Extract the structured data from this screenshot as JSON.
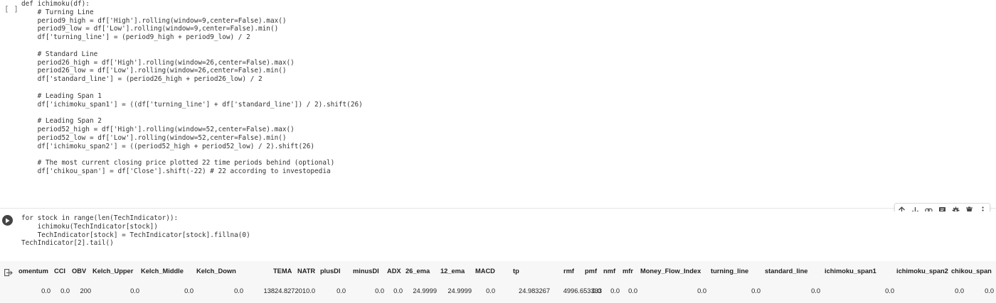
{
  "cell1": {
    "bracket": "[ ]",
    "lines": [
      "def ichimoku(df):",
      "    # Turning Line",
      "    period9_high = df['High'].rolling(window=9,center=False).max()",
      "    period9_low = df['Low'].rolling(window=9,center=False).min()",
      "    df['turning_line'] = (period9_high + period9_low) / 2",
      "",
      "    # Standard Line",
      "    period26_high = df['High'].rolling(window=26,center=False).max()",
      "    period26_low = df['Low'].rolling(window=26,center=False).min()",
      "    df['standard_line'] = (period26_high + period26_low) / 2",
      "",
      "    # Leading Span 1",
      "    df['ichimoku_span1'] = ((df['turning_line'] + df['standard_line']) / 2).shift(26)",
      "",
      "    # Leading Span 2",
      "    period52_high = df['High'].rolling(window=52,center=False).max()",
      "    period52_low = df['Low'].rolling(window=52,center=False).min()",
      "    df['ichimoku_span2'] = ((period52_high + period52_low) / 2).shift(26)",
      "",
      "    # The most current closing price plotted 22 time periods behind (optional)",
      "    df['chikou_span'] = df['Close'].shift(-22) # 22 according to investopedia"
    ]
  },
  "cell2": {
    "lines": [
      "for stock in range(len(TechIndicator)):",
      "    ichimoku(TechIndicator[stock])",
      "    TechIndicator[stock] = TechIndicator[stock].fillna(0)",
      "TechIndicator[2].tail()"
    ]
  },
  "toolbar": [
    "arrow-up-icon",
    "arrow-down-icon",
    "link-icon",
    "comment-icon",
    "gear-icon",
    "trash-icon",
    "more-icon"
  ],
  "output": {
    "columns": [
      {
        "h": "omentum",
        "v": "0.0"
      },
      {
        "h": "CCI",
        "v": "0.0"
      },
      {
        "h": "OBV",
        "v": "200"
      },
      {
        "h": "Kelch_Upper",
        "v": "0.0"
      },
      {
        "h": "Kelch_Middle",
        "v": "0.0"
      },
      {
        "h": "Kelch_Down",
        "v": "0.0"
      },
      {
        "h": "TEMA",
        "v": "13824.827201"
      },
      {
        "h": "NATR",
        "v": "0.0"
      },
      {
        "h": "plusDI",
        "v": "0.0"
      },
      {
        "h": "minusDI",
        "v": "0.0"
      },
      {
        "h": "ADX",
        "v": "0.0"
      },
      {
        "h": "26_ema",
        "v": "24.9999"
      },
      {
        "h": "12_ema",
        "v": "24.9999"
      },
      {
        "h": "MACD",
        "v": "0.0"
      },
      {
        "h": "tp",
        "v": "24.983267"
      },
      {
        "h": "rmf",
        "v": "4996.653333"
      },
      {
        "h": "pmf",
        "v": "0.0"
      },
      {
        "h": "nmf",
        "v": "0.0"
      },
      {
        "h": "mfr",
        "v": "0.0"
      },
      {
        "h": "Money_Flow_Index",
        "v": "0.0"
      },
      {
        "h": "turning_line",
        "v": "0.0"
      },
      {
        "h": "standard_line",
        "v": "0.0"
      },
      {
        "h": "ichimoku_span1",
        "v": "0.0"
      },
      {
        "h": "ichimoku_span2",
        "v": "0.0"
      },
      {
        "h": "chikou_span",
        "v": "0.0"
      }
    ]
  }
}
